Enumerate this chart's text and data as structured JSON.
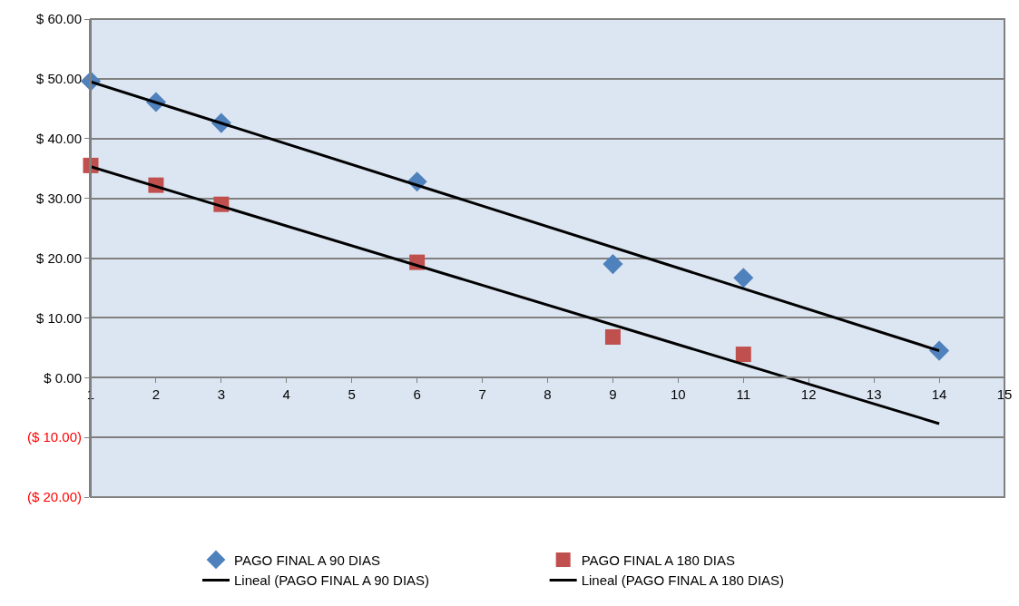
{
  "chart_data": {
    "type": "scatter",
    "xlim": [
      1,
      15
    ],
    "xticks": [
      1,
      2,
      3,
      4,
      5,
      6,
      7,
      8,
      9,
      10,
      11,
      12,
      13,
      14,
      15
    ],
    "ylim": [
      -20,
      60
    ],
    "yticks": [
      {
        "value": -20,
        "label": "($ 20.00)"
      },
      {
        "value": -10,
        "label": "($ 10.00)"
      },
      {
        "value": 0,
        "label": "$ 0.00"
      },
      {
        "value": 10,
        "label": "$ 10.00"
      },
      {
        "value": 20,
        "label": "$ 20.00"
      },
      {
        "value": 30,
        "label": "$ 30.00"
      },
      {
        "value": 40,
        "label": "$ 40.00"
      },
      {
        "value": 50,
        "label": "$ 50.00"
      },
      {
        "value": 60,
        "label": "$ 60.00"
      }
    ],
    "grid": "y",
    "legend": "bottom",
    "series": [
      {
        "name": "PAGO FINAL A 90 DIAS",
        "color": "#4f81bd",
        "marker": "diamond",
        "x": [
          1,
          2,
          3,
          6,
          9,
          11,
          14
        ],
        "values": [
          49.6,
          46.1,
          42.6,
          32.8,
          19.0,
          16.7,
          4.5
        ]
      },
      {
        "name": "PAGO FINAL A 180 DIAS",
        "color": "#c0504d",
        "marker": "square",
        "x": [
          1,
          2,
          3,
          6,
          9,
          11
        ],
        "values": [
          35.5,
          32.2,
          29.0,
          19.3,
          6.8,
          3.9
        ]
      },
      {
        "name": "Lineal (PAGO FINAL A 90 DIAS)",
        "type": "line",
        "color": "#000000",
        "x": [
          1,
          14
        ],
        "values": [
          49.5,
          4.5
        ]
      },
      {
        "name": "Lineal (PAGO FINAL A 180 DIAS)",
        "type": "line",
        "color": "#000000",
        "x": [
          1,
          14
        ],
        "values": [
          35.3,
          -7.7
        ]
      }
    ]
  }
}
